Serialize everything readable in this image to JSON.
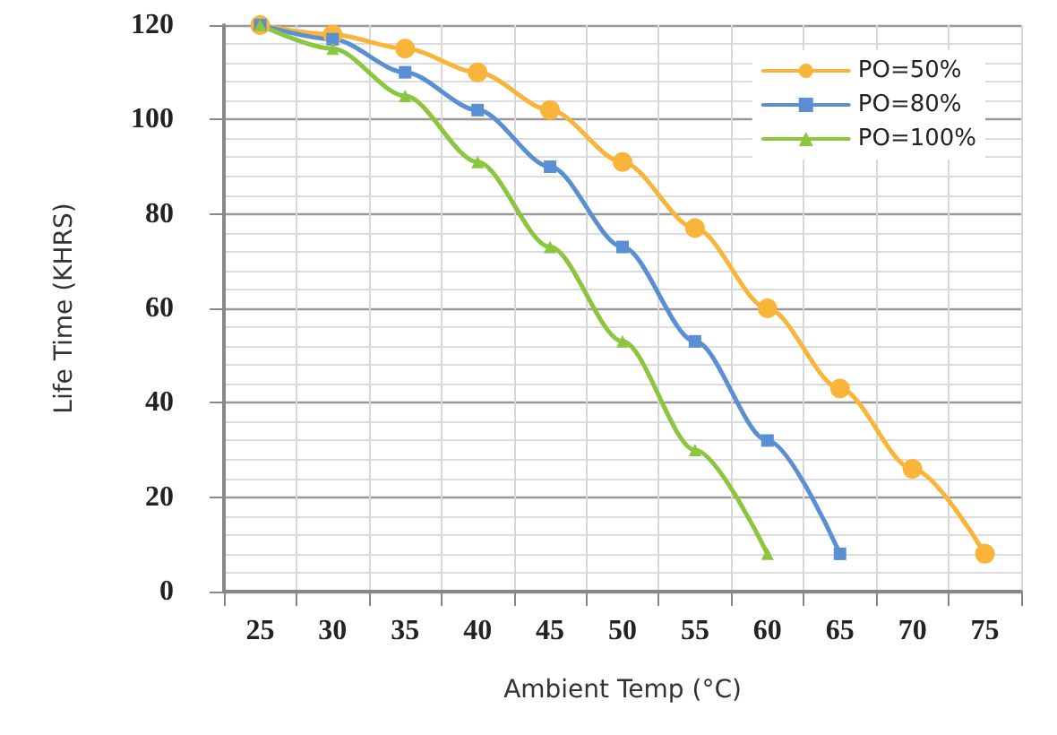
{
  "chart_data": {
    "type": "line",
    "xlabel": "Ambient Temp (°C)",
    "ylabel": "Life Time (KHRS)",
    "categories": [
      "25",
      "30",
      "35",
      "40",
      "45",
      "50",
      "55",
      "60",
      "65",
      "70",
      "75"
    ],
    "series": [
      {
        "name": "PO=50%",
        "color": "#f9b43a",
        "marker": "circle",
        "values": [
          120,
          118,
          115,
          110,
          102,
          91,
          77,
          60,
          43,
          26,
          8
        ]
      },
      {
        "name": "PO=80%",
        "color": "#5b8fd4",
        "marker": "square",
        "values": [
          120,
          117,
          110,
          102,
          90,
          73,
          53,
          32,
          8,
          null,
          null
        ]
      },
      {
        "name": "PO=100%",
        "color": "#8cc63f",
        "marker": "triangle",
        "values": [
          120,
          115,
          105,
          91,
          73,
          53,
          30,
          8,
          null,
          null,
          null
        ]
      }
    ],
    "ylim": [
      0,
      120
    ],
    "yticks": [
      0,
      20,
      40,
      60,
      80,
      100,
      120
    ],
    "grid": true,
    "legend": "top right"
  }
}
